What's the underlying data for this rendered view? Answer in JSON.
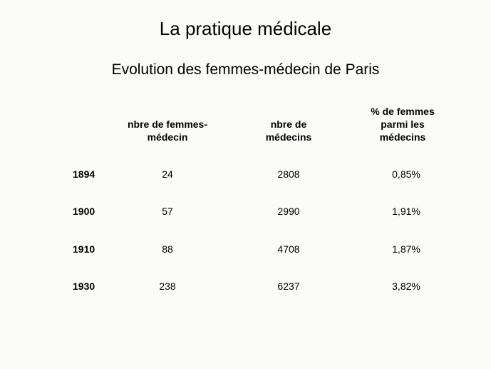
{
  "slide": {
    "title": "La pratique médicale",
    "subtitle": "Evolution des femmes-médecin de Paris"
  },
  "table": {
    "headers": {
      "women_doctors": "nbre de femmes-\nmédecin",
      "doctors": "nbre de\nmédecins",
      "percent": "% de femmes\nparmi les\nmédecins"
    },
    "rows": [
      {
        "year": "1894",
        "women_doctors": "24",
        "doctors": "2808",
        "percent": "0,85%"
      },
      {
        "year": "1900",
        "women_doctors": "57",
        "doctors": "2990",
        "percent": "1,91%"
      },
      {
        "year": "1910",
        "women_doctors": "88",
        "doctors": "4708",
        "percent": "1,87%"
      },
      {
        "year": "1930",
        "women_doctors": "238",
        "doctors": "6237",
        "percent": "3,82%"
      }
    ]
  }
}
